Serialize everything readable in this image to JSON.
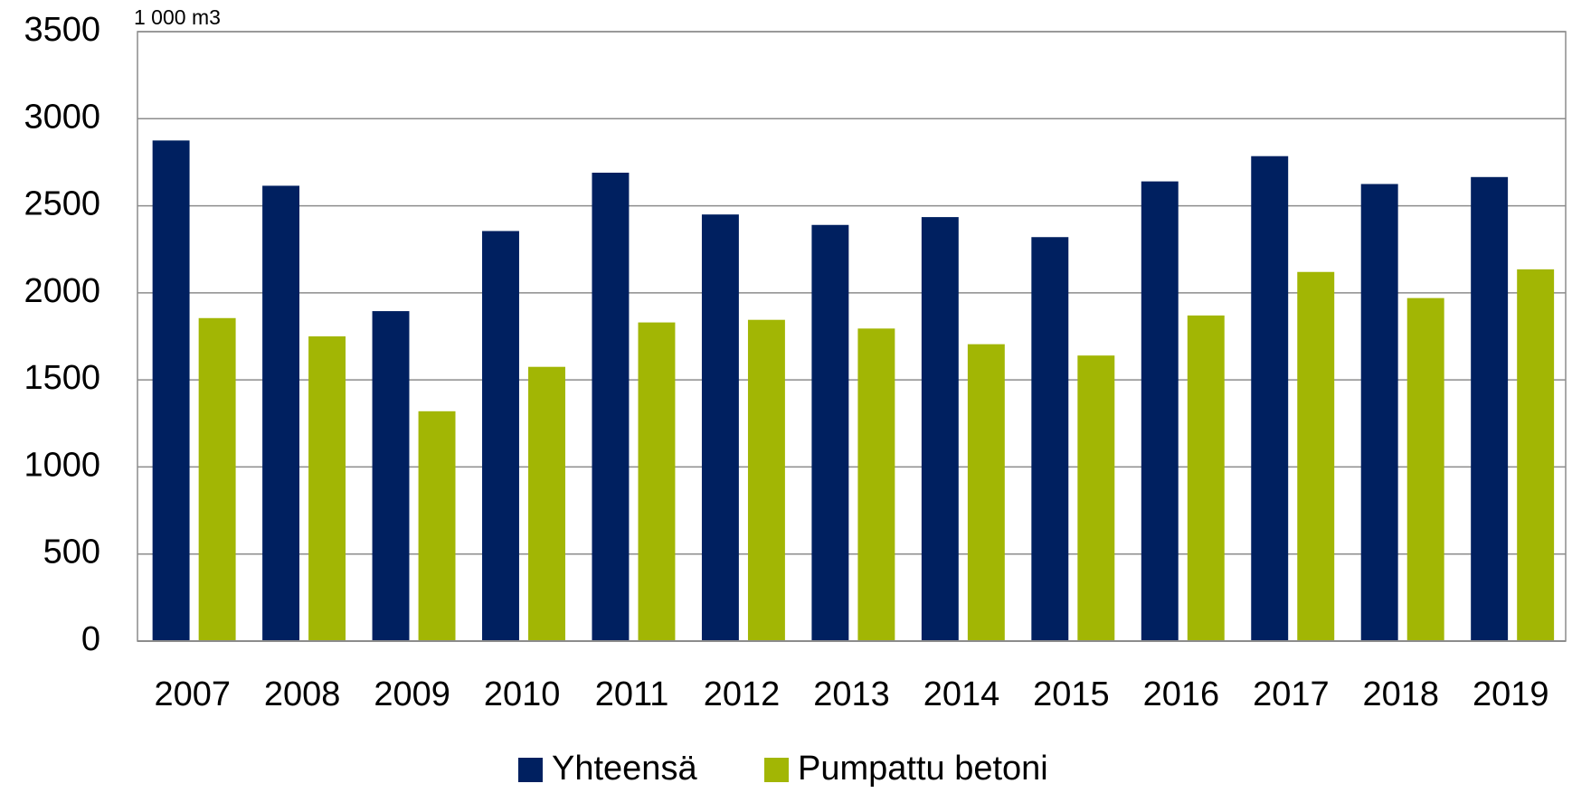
{
  "chart_data": {
    "type": "bar",
    "annotation": "1 000 m3",
    "categories": [
      "2007",
      "2008",
      "2009",
      "2010",
      "2011",
      "2012",
      "2013",
      "2014",
      "2015",
      "2016",
      "2017",
      "2018",
      "2019"
    ],
    "series": [
      {
        "name": "Yhteensä",
        "color": "#002060",
        "values": [
          2875,
          2615,
          1895,
          2355,
          2690,
          2450,
          2390,
          2435,
          2320,
          2640,
          2785,
          2625,
          2665
        ]
      },
      {
        "name": "Pumpattu betoni",
        "color": "#a2b604",
        "values": [
          1855,
          1750,
          1320,
          1575,
          1830,
          1845,
          1795,
          1705,
          1640,
          1870,
          2120,
          1970,
          2135
        ]
      }
    ],
    "ylim": [
      0,
      3500
    ],
    "yticks": [
      0,
      500,
      1000,
      1500,
      2000,
      2500,
      3000,
      3500
    ],
    "grid": true,
    "legend": "bottom"
  }
}
